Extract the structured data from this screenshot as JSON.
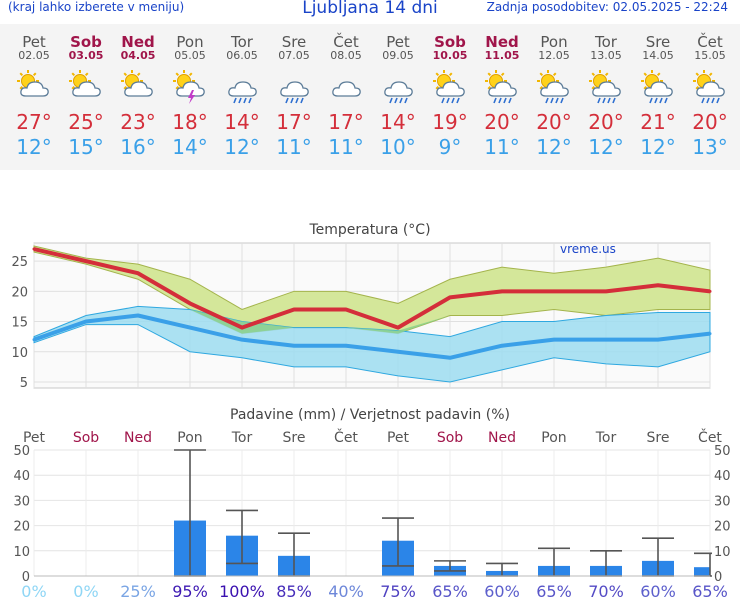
{
  "header": {
    "left_note": "(kraj lahko izberete v meniju)",
    "title": "Ljubljana 14 dni",
    "last_update": "Zadnja posodobitev: 02.05.2025 - 22:24"
  },
  "days": [
    {
      "name": "Pet",
      "date": "02.05",
      "weekend": false,
      "icon": "sun-cloud-icon",
      "tmax": "27°",
      "tmin": "12°"
    },
    {
      "name": "Sob",
      "date": "03.05",
      "weekend": true,
      "icon": "sun-cloud-icon",
      "tmax": "25°",
      "tmin": "15°"
    },
    {
      "name": "Ned",
      "date": "04.05",
      "weekend": true,
      "icon": "sun-cloud-icon",
      "tmax": "23°",
      "tmin": "16°"
    },
    {
      "name": "Pon",
      "date": "05.05",
      "weekend": false,
      "icon": "thunderstorm-icon",
      "tmax": "18°",
      "tmin": "14°"
    },
    {
      "name": "Tor",
      "date": "06.05",
      "weekend": false,
      "icon": "rain-cloud-icon",
      "tmax": "14°",
      "tmin": "12°"
    },
    {
      "name": "Sre",
      "date": "07.05",
      "weekend": false,
      "icon": "rain-cloud-icon",
      "tmax": "17°",
      "tmin": "11°"
    },
    {
      "name": "Čet",
      "date": "08.05",
      "weekend": false,
      "icon": "cloud-icon",
      "tmax": "17°",
      "tmin": "11°"
    },
    {
      "name": "Pet",
      "date": "09.05",
      "weekend": false,
      "icon": "rain-cloud-icon",
      "tmax": "14°",
      "tmin": "10°"
    },
    {
      "name": "Sob",
      "date": "10.05",
      "weekend": true,
      "icon": "sun-rain-icon",
      "tmax": "19°",
      "tmin": "9°"
    },
    {
      "name": "Ned",
      "date": "11.05",
      "weekend": true,
      "icon": "sun-rain-icon",
      "tmax": "20°",
      "tmin": "11°"
    },
    {
      "name": "Pon",
      "date": "12.05",
      "weekend": false,
      "icon": "sun-rain-icon",
      "tmax": "20°",
      "tmin": "12°"
    },
    {
      "name": "Tor",
      "date": "13.05",
      "weekend": false,
      "icon": "sun-rain-icon",
      "tmax": "20°",
      "tmin": "12°"
    },
    {
      "name": "Sre",
      "date": "14.05",
      "weekend": false,
      "icon": "sun-rain-icon",
      "tmax": "21°",
      "tmin": "12°"
    },
    {
      "name": "Čet",
      "date": "15.05",
      "weekend": false,
      "icon": "sun-rain-icon",
      "tmax": "20°",
      "tmin": "13°"
    }
  ],
  "colors": {
    "tmax": "#d42e3a",
    "tmin": "#3aa0e8",
    "weekend": "#a0154a",
    "max_band": "#d4e79a",
    "min_band": "#9cdcf0",
    "overlap": "#8ad08a",
    "bar": "#2b85e8",
    "prob_low": "#8fd6f5",
    "prob_high": "#3a10b0"
  },
  "chart_data": [
    {
      "type": "line",
      "title": "Temperatura (°C)",
      "watermark": "vreme.us",
      "y_ticks": [
        "5",
        "10",
        "15",
        "20",
        "25"
      ],
      "ylim": [
        4,
        28
      ],
      "grid": true,
      "x": [
        "02.05",
        "03.05",
        "04.05",
        "05.05",
        "06.05",
        "07.05",
        "08.05",
        "09.05",
        "10.05",
        "11.05",
        "12.05",
        "13.05",
        "14.05",
        "15.05"
      ],
      "series": [
        {
          "values": [
            27,
            25,
            23,
            18,
            14,
            17,
            17,
            14,
            19,
            20,
            20,
            20,
            21,
            20
          ]
        },
        {
          "values": [
            12,
            15,
            16,
            14,
            12,
            11,
            11,
            10,
            9,
            11,
            12,
            12,
            12,
            13
          ]
        }
      ],
      "bands": [
        {
          "upper": [
            27.5,
            25.5,
            24.5,
            22,
            17,
            20,
            20,
            18,
            22,
            24,
            23,
            24,
            25.5,
            23.5
          ],
          "lower": [
            26.5,
            24.5,
            22,
            17,
            13,
            14,
            14,
            13,
            16,
            16,
            17,
            16,
            17,
            17
          ]
        },
        {
          "upper": [
            12.5,
            16,
            17.5,
            17,
            15,
            14,
            14,
            13.5,
            12.5,
            15,
            15,
            16,
            16.5,
            16.5
          ],
          "lower": [
            11.5,
            14.5,
            14.5,
            10,
            9,
            7.5,
            7.5,
            6,
            5,
            7,
            9,
            8,
            7.5,
            10
          ]
        }
      ]
    },
    {
      "type": "bar",
      "title": "Padavine (mm) / Verjetnost padavin (%)",
      "day_labels": [
        "Pet",
        "Sob",
        "Ned",
        "Pon",
        "Tor",
        "Sre",
        "Čet",
        "Pet",
        "Sob",
        "Ned",
        "Pon",
        "Tor",
        "Sre",
        "Čet"
      ],
      "weekend": [
        false,
        true,
        true,
        false,
        false,
        false,
        false,
        false,
        true,
        true,
        false,
        false,
        false,
        false
      ],
      "y_ticks": [
        "0",
        "10",
        "20",
        "30",
        "40",
        "50"
      ],
      "ylim": [
        0,
        50
      ],
      "values": [
        0,
        0,
        0,
        22,
        16,
        8,
        0,
        14,
        4,
        2,
        4,
        4,
        6,
        3.5
      ],
      "err_low": [
        0,
        0,
        0,
        0,
        5,
        0,
        0,
        4,
        2,
        0,
        0,
        0,
        0,
        0
      ],
      "err_high": [
        0,
        0,
        0,
        50,
        26,
        17,
        0,
        23,
        6,
        5,
        11,
        10,
        15,
        9
      ],
      "probability": [
        "0%",
        "0%",
        "25%",
        "95%",
        "100%",
        "85%",
        "40%",
        "75%",
        "65%",
        "60%",
        "65%",
        "70%",
        "60%",
        "65%"
      ],
      "prob_pct": [
        0,
        0,
        25,
        95,
        100,
        85,
        40,
        75,
        65,
        60,
        65,
        70,
        60,
        65
      ]
    }
  ]
}
